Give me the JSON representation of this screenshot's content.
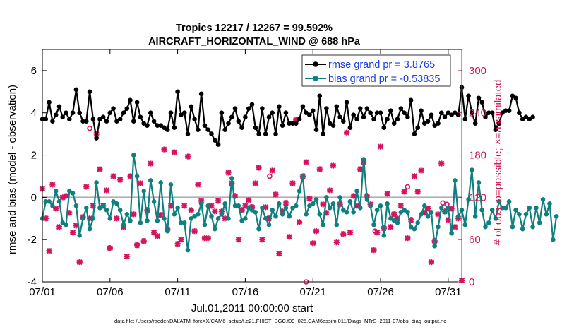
{
  "chart_data": {
    "type": "line",
    "title_line1": "Tropics 12217 / 12267 = 99.592%",
    "title_line2": "AIRCRAFT_HORIZONTAL_WIND @ 688 hPa",
    "xlabel": "Jul.01,2011 00:00:00 start",
    "ylabel_left": "rmse and bias (model - observation)",
    "ylabel_right": "# of obs: o=possible; ×=assimilated",
    "footer": "data file: /Users/raeder/DAI/ATM_forcXX/CAM6_setup/f.e21.FHIST_BGC.f09_025.CAM6assim.011/Diags_NTrS_2011-07/obs_diag_output.nc",
    "xlim": [
      1,
      32
    ],
    "ylim_left": [
      -4,
      7
    ],
    "ylim_right": [
      0,
      330
    ],
    "x_ticks": [
      {
        "value": 1,
        "label": "07/01"
      },
      {
        "value": 6,
        "label": "07/06"
      },
      {
        "value": 11,
        "label": "07/11"
      },
      {
        "value": 16,
        "label": "07/16"
      },
      {
        "value": 21,
        "label": "07/21"
      },
      {
        "value": 26,
        "label": "07/26"
      },
      {
        "value": 31,
        "label": "07/31"
      }
    ],
    "y_ticks_left": [
      -4,
      -2,
      0,
      2,
      4,
      6
    ],
    "y_ticks_right": [
      0,
      60,
      120,
      180,
      240,
      300
    ],
    "legend": [
      {
        "label": "rmse grand pr = 3.8765",
        "color": "#000000"
      },
      {
        "label": "bias grand pr = -0.53835",
        "color": "#0f7f7f"
      }
    ],
    "colors": {
      "rmse": "#000000",
      "bias": "#0f7f7f",
      "obs": "#d6135f",
      "zero_line": "#b0b0b0",
      "legend_text": "#1f3fe0"
    },
    "x_start": 1,
    "x_step": 0.25,
    "series": [
      {
        "name": "rmse",
        "values": [
          3.7,
          3.7,
          4.5,
          3.6,
          3.9,
          4.3,
          3.8,
          4.0,
          3.7,
          4.0,
          5.1,
          4.0,
          3.6,
          3.6,
          5.0,
          3.7,
          2.8,
          3.7,
          3.8,
          3.6,
          4.0,
          4.2,
          3.6,
          3.7,
          4.0,
          4.2,
          4.6,
          3.6,
          4.5,
          3.8,
          3.5,
          3.4,
          4.0,
          3.6,
          3.4,
          3.4,
          3.3,
          3.2,
          4.0,
          3.3,
          5.0,
          3.9,
          4.0,
          3.0,
          4.3,
          3.7,
          3.2,
          4.9,
          3.4,
          3.2,
          3.0,
          2.7,
          2.5,
          4.0,
          3.2,
          3.5,
          3.8,
          4.2,
          3.6,
          3.3,
          3.8,
          4.2,
          4.4,
          3.3,
          3.0,
          4.2,
          3.0,
          3.8,
          4.0,
          3.0,
          4.3,
          3.4,
          4.0,
          3.5,
          3.5,
          3.5,
          3.7,
          4.3,
          4.0,
          3.9,
          4.1,
          3.2,
          4.8,
          3.0,
          4.2,
          3.5,
          3.4,
          4.3,
          3.8,
          3.6,
          4.5,
          3.3,
          3.9,
          3.7,
          4.2,
          3.8,
          4.2,
          4.0,
          3.7,
          4.0,
          4.0,
          3.3,
          3.7,
          4.1,
          3.5,
          3.7,
          4.2,
          4.0,
          3.8,
          4.6,
          3.0,
          3.3,
          4.1,
          3.5,
          3.6,
          3.9,
          3.4,
          3.5,
          4.0,
          3.8,
          4.0,
          3.9,
          4.0,
          3.9,
          5.2,
          3.7,
          4.8,
          4.0,
          3.5,
          4.7,
          4.5,
          3.8,
          4.0,
          4.0,
          3.2,
          3.5,
          4.0,
          4.1,
          4.1,
          4.8,
          4.7,
          4.0,
          3.7,
          3.8,
          3.7,
          3.8
        ]
      },
      {
        "name": "bias",
        "values": [
          -1.0,
          -0.2,
          -0.2,
          -0.4,
          0.3,
          -0.2,
          -1.2,
          -1.3,
          0.3,
          0.2,
          -0.4,
          -1.8,
          -1.0,
          -0.5,
          -1.5,
          -1.0,
          0.7,
          -0.5,
          -0.4,
          -0.6,
          -1.0,
          -0.2,
          -0.3,
          -0.6,
          -1.3,
          -0.8,
          -1.1,
          2.0,
          1.0,
          -1.2,
          0.3,
          -1.1,
          0.8,
          -0.2,
          -1.1,
          0.7,
          -1.0,
          -1.6,
          0.6,
          -0.8,
          -0.5,
          -1.2,
          -1.2,
          -2.5,
          -1.0,
          -0.9,
          -0.8,
          -0.3,
          -1.3,
          -0.4,
          -0.9,
          -1.5,
          -1.0,
          -0.8,
          -0.3,
          -1.0,
          0.9,
          -0.4,
          -0.4,
          -1.1,
          -1.0,
          -0.5,
          -0.6,
          -0.7,
          -1.5,
          -0.5,
          -1.0,
          -1.3,
          -0.6,
          -0.9,
          -0.3,
          -0.8,
          -0.5,
          -0.9,
          -0.5,
          -0.4,
          0.3,
          1.0,
          -0.8,
          -0.4,
          -0.3,
          -0.1,
          -0.8,
          -1.3,
          0.0,
          -0.5,
          -0.3,
          -1.3,
          0.0,
          -0.6,
          -0.7,
          -0.2,
          -0.7,
          0.3,
          -0.5,
          1.8,
          -0.1,
          -0.4,
          -1.3,
          -0.6,
          -0.4,
          -1.8,
          -0.3,
          -1.0,
          -1.1,
          -1.2,
          -0.7,
          -0.6,
          -0.7,
          -1.4,
          -1.5,
          -1.2,
          -0.8,
          -0.4,
          -0.9,
          -0.7,
          -2.3,
          -1.4,
          -0.5,
          -0.7,
          -0.5,
          -1.7,
          0.8,
          -0.9,
          -0.6,
          -1.3,
          -0.1,
          1.3,
          -0.9,
          0.7,
          -0.6,
          -1.4,
          -1.2,
          -0.6,
          -1.0,
          -0.2,
          -0.5,
          -0.5,
          -0.2,
          -1.4,
          -0.6,
          -0.8,
          -1.5,
          -0.8,
          -0.5,
          -1.4,
          -0.5,
          -1.2,
          -0.1,
          -0.8,
          -0.3,
          -2.0,
          -0.9
        ]
      }
    ],
    "obs_assimilated": [
      [
        1.0,
        132
      ],
      [
        1.25,
        90
      ],
      [
        1.5,
        44
      ],
      [
        1.75,
        138
      ],
      [
        2.0,
        104
      ],
      [
        2.25,
        78
      ],
      [
        2.5,
        120
      ],
      [
        2.75,
        122
      ],
      [
        3.0,
        98
      ],
      [
        3.25,
        70
      ],
      [
        3.5,
        80
      ],
      [
        3.75,
        28
      ],
      [
        4.0,
        92
      ],
      [
        4.25,
        135
      ],
      [
        4.5,
        90
      ],
      [
        4.75,
        108
      ],
      [
        5.0,
        210
      ],
      [
        5.25,
        160
      ],
      [
        5.5,
        108
      ],
      [
        5.75,
        130
      ],
      [
        6.0,
        48
      ],
      [
        6.25,
        150
      ],
      [
        6.5,
        90
      ],
      [
        6.75,
        145
      ],
      [
        7.0,
        78
      ],
      [
        7.25,
        36
      ],
      [
        7.5,
        150
      ],
      [
        7.75,
        96
      ],
      [
        8.0,
        52
      ],
      [
        8.25,
        140
      ],
      [
        8.5,
        58
      ],
      [
        8.75,
        102
      ],
      [
        9.0,
        168
      ],
      [
        9.25,
        70
      ],
      [
        9.5,
        65
      ],
      [
        9.75,
        95
      ],
      [
        10.0,
        188
      ],
      [
        10.25,
        75
      ],
      [
        10.5,
        108
      ],
      [
        10.75,
        184
      ],
      [
        11.0,
        54
      ],
      [
        11.25,
        60
      ],
      [
        11.5,
        108
      ],
      [
        11.75,
        178
      ],
      [
        12.0,
        102
      ],
      [
        12.25,
        72
      ],
      [
        12.5,
        138
      ],
      [
        12.75,
        115
      ],
      [
        13.0,
        62
      ],
      [
        13.25,
        62
      ],
      [
        13.5,
        108
      ],
      [
        13.75,
        100
      ],
      [
        14.0,
        115
      ],
      [
        14.25,
        100
      ],
      [
        14.5,
        90
      ],
      [
        14.75,
        155
      ],
      [
        15.0,
        140
      ],
      [
        15.25,
        122
      ],
      [
        15.5,
        60
      ],
      [
        15.75,
        102
      ],
      [
        16.0,
        108
      ],
      [
        16.25,
        116
      ],
      [
        16.5,
        106
      ],
      [
        16.75,
        140
      ],
      [
        17.0,
        162
      ],
      [
        17.25,
        60
      ],
      [
        17.5,
        106
      ],
      [
        17.75,
        90
      ],
      [
        18.0,
        158
      ],
      [
        18.25,
        124
      ],
      [
        18.5,
        40
      ],
      [
        18.75,
        100
      ],
      [
        19.0,
        112
      ],
      [
        19.25,
        64
      ],
      [
        19.5,
        140
      ],
      [
        19.75,
        230
      ],
      [
        20.0,
        85
      ],
      [
        20.25,
        150
      ],
      [
        20.5,
        170
      ],
      [
        20.75,
        118
      ],
      [
        21.0,
        55
      ],
      [
        21.25,
        72
      ],
      [
        21.5,
        160
      ],
      [
        21.75,
        110
      ],
      [
        22.0,
        98
      ],
      [
        22.25,
        130
      ],
      [
        22.5,
        165
      ],
      [
        22.75,
        56
      ],
      [
        23.0,
        110
      ],
      [
        23.25,
        68
      ],
      [
        23.5,
        212
      ],
      [
        23.75,
        70
      ],
      [
        24.0,
        122
      ],
      [
        24.25,
        108
      ],
      [
        24.5,
        160
      ],
      [
        24.75,
        170
      ],
      [
        25.0,
        122
      ],
      [
        25.25,
        110
      ],
      [
        25.5,
        45
      ],
      [
        25.75,
        70
      ],
      [
        26.0,
        192
      ],
      [
        26.25,
        76
      ],
      [
        26.5,
        125
      ],
      [
        26.75,
        78
      ],
      [
        27.0,
        96
      ],
      [
        27.25,
        90
      ],
      [
        27.5,
        108
      ],
      [
        27.75,
        128
      ],
      [
        28.0,
        62
      ],
      [
        28.25,
        88
      ],
      [
        28.5,
        150
      ],
      [
        28.75,
        128
      ],
      [
        29.0,
        158
      ],
      [
        29.25,
        98
      ],
      [
        29.5,
        104
      ],
      [
        29.75,
        28
      ],
      [
        30.0,
        58
      ],
      [
        30.25,
        96
      ],
      [
        30.5,
        168
      ],
      [
        30.75,
        100
      ],
      [
        31.0,
        88
      ],
      [
        31.25,
        104
      ],
      [
        31.5,
        78
      ],
      [
        31.75,
        90
      ],
      [
        32.0,
        2
      ]
    ],
    "obs_possible": [
      [
        4.5,
        218
      ],
      [
        17.8,
        150
      ],
      [
        20.5,
        0
      ],
      [
        25.6,
        72
      ],
      [
        28.0,
        135
      ],
      [
        30.6,
        112
      ],
      [
        30.9,
        110
      ]
    ]
  }
}
